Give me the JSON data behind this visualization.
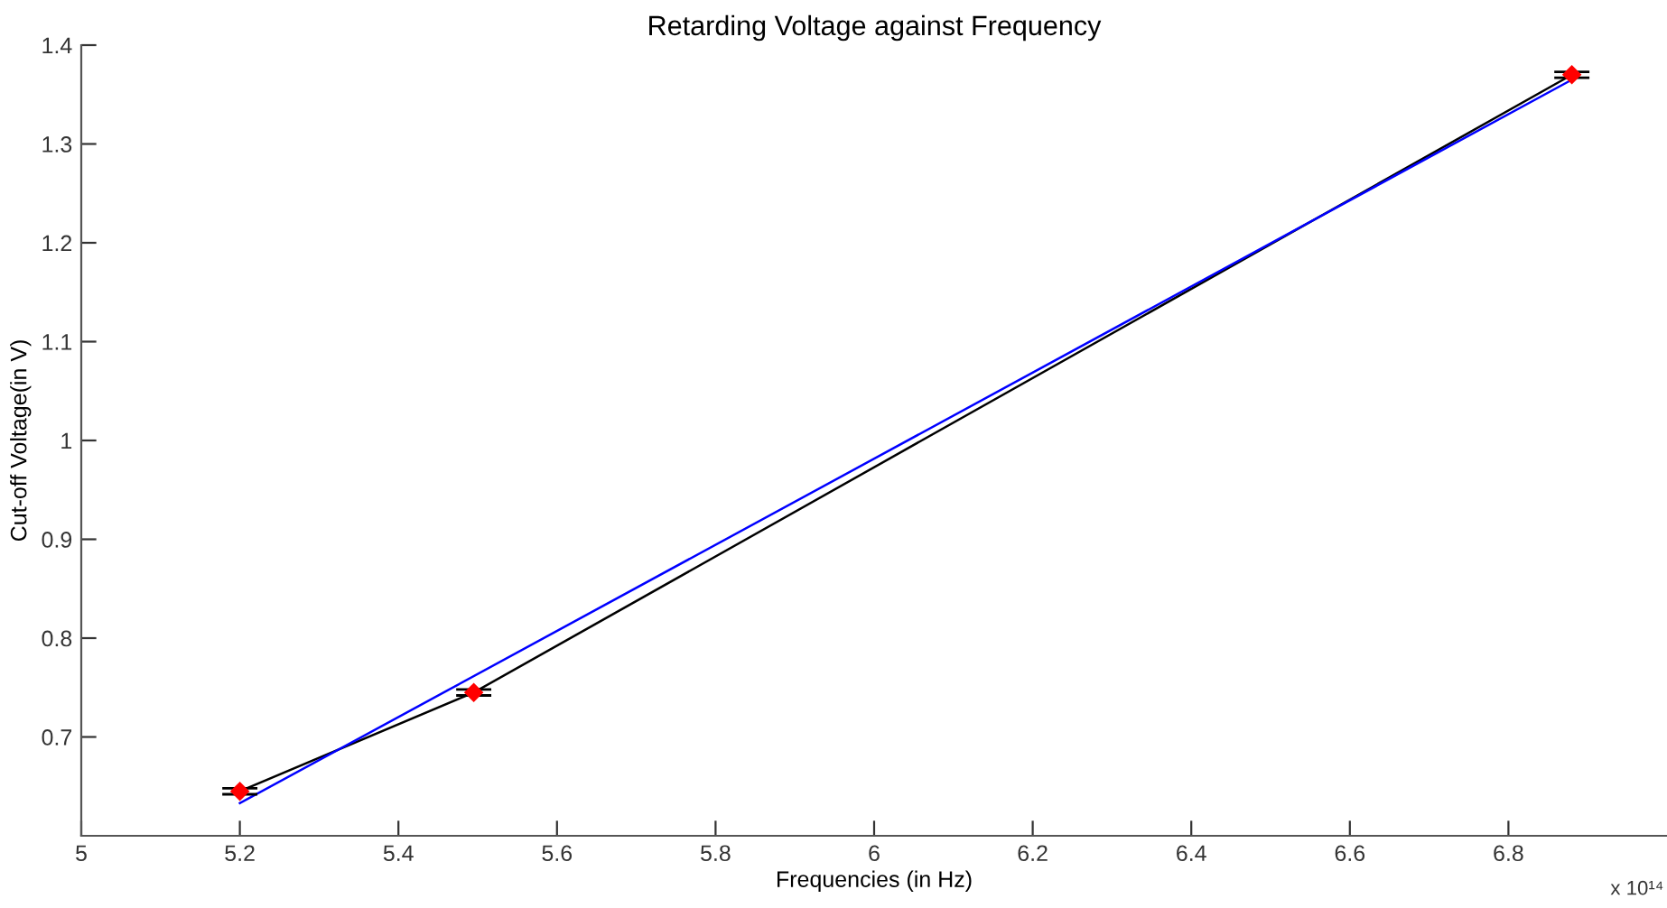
{
  "chart_data": {
    "type": "line",
    "title": "Retarding Voltage against Frequency",
    "xlabel": "Frequencies (in Hz)",
    "ylabel": "Cut-off Voltage(in V)",
    "xlim": [
      5,
      7
    ],
    "xticks": [
      5,
      5.2,
      5.4,
      5.6,
      5.8,
      6,
      6.2,
      6.4,
      6.6,
      6.8
    ],
    "ylim": [
      0.6,
      1.4
    ],
    "yticks": [
      0.7,
      0.8,
      0.9,
      1,
      1.1,
      1.2,
      1.3,
      1.4
    ],
    "grid": false,
    "annotations": [
      "x 10¹⁴"
    ],
    "series": [
      {
        "x": [
          5.2,
          5.495,
          6.88
        ],
        "values": [
          0.645,
          0.745,
          1.37
        ],
        "errors": [
          0.003,
          0.003,
          0.003
        ],
        "color": "#000000",
        "colors": [
          "#ff0000",
          "#ff0000",
          "#ff0000"
        ],
        "marker": "diamond",
        "line_style": "solid"
      },
      {
        "x": [
          5.2,
          6.88
        ],
        "values": [
          0.633,
          1.365
        ],
        "color": "#0000ff",
        "marker": "none",
        "line_style": "solid"
      }
    ]
  }
}
